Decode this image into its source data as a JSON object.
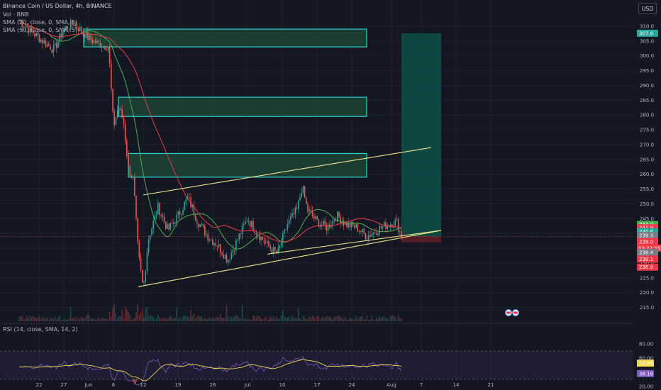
{
  "header": {
    "title": "Binance Coin / US Dollar, 4h, BINANCE",
    "vol": "Vol · BNB",
    "sma1": "SMA (20, close, 0, SMA, 5)",
    "sma2": "SMA (50, close, 0, SMA, 5)",
    "currency": "USD"
  },
  "rsi": {
    "label": "RSI (14, close, SMA, 14, 2)",
    "ticks": [
      "80.00",
      "60.00",
      "40.00",
      "20.00"
    ],
    "tag_rsi": "38.16",
    "tag_ma": "52.86"
  },
  "price_tags": {
    "target": "307.6",
    "t243": "243.0",
    "t241_9": "241.9",
    "t240_6": "240.6",
    "t239_3": "239.3",
    "current": "239.0",
    "countdown": "03:22:55",
    "t238_4": "238.4",
    "t238_1": "238.1",
    "t236_9": "236.9"
  },
  "colors": {
    "background": "#131722",
    "up": "#26a69a",
    "down": "#ef5350",
    "sma20": "#4caf50",
    "sma50": "#f23645",
    "zone_border": "#2ad4d4",
    "zone_fill": "#1f4a35",
    "trendline": "#f0e68c",
    "target_fill": "#0e4a44",
    "rsi_line": "#7e57c2",
    "rsi_ma": "#f0d64f"
  },
  "chart_data": {
    "type": "candlestick",
    "title": "Binance Coin / US Dollar, 4h, BINANCE",
    "y_unit": "USD",
    "ylim": [
      213,
      312
    ],
    "y_ticks": [
      215.0,
      220.0,
      225.0,
      230.0,
      235.0,
      240.0,
      245.0,
      250.0,
      255.0,
      260.0,
      265.0,
      270.0,
      275.0,
      280.0,
      285.0,
      290.0,
      295.0,
      300.0,
      305.0,
      310.0
    ],
    "x_labels": [
      "22",
      "27",
      "Jun",
      "6",
      "12",
      "19",
      "26",
      "Jul",
      "10",
      "17",
      "24",
      "Aug",
      "7",
      "14",
      "21"
    ],
    "price_path": [
      [
        "May 18",
        312
      ],
      [
        "May 22",
        306
      ],
      [
        "May 25",
        302
      ],
      [
        "May 27",
        309
      ],
      [
        "May 29",
        311
      ],
      [
        "Jun 1",
        306
      ],
      [
        "Jun 3",
        304
      ],
      [
        "Jun 5",
        303
      ],
      [
        "Jun 6",
        276
      ],
      [
        "Jun 7",
        283
      ],
      [
        "Jun 8",
        278
      ],
      [
        "Jun 9",
        262
      ],
      [
        "Jun 10",
        258
      ],
      [
        "Jun 11",
        233
      ],
      [
        "Jun 12",
        221
      ],
      [
        "Jun 13",
        238
      ],
      [
        "Jun 15",
        249
      ],
      [
        "Jun 17",
        241
      ],
      [
        "Jun 19",
        246
      ],
      [
        "Jun 21",
        252
      ],
      [
        "Jun 23",
        244
      ],
      [
        "Jun 25",
        239
      ],
      [
        "Jun 27",
        236
      ],
      [
        "Jun 29",
        231
      ],
      [
        "Jul 1",
        238
      ],
      [
        "Jul 3",
        245
      ],
      [
        "Jul 5",
        240
      ],
      [
        "Jul 7",
        236
      ],
      [
        "Jul 9",
        233
      ],
      [
        "Jul 11",
        243
      ],
      [
        "Jul 13",
        248
      ],
      [
        "Jul 14",
        256
      ],
      [
        "Jul 15",
        248
      ],
      [
        "Jul 17",
        244
      ],
      [
        "Jul 19",
        242
      ],
      [
        "Jul 21",
        246
      ],
      [
        "Jul 23",
        243
      ],
      [
        "Jul 25",
        242
      ],
      [
        "Jul 27",
        239
      ],
      [
        "Jul 29",
        241
      ],
      [
        "Jul 31",
        243
      ],
      [
        "Aug 2",
        244
      ],
      [
        "Aug 3",
        239
      ]
    ],
    "zones": [
      {
        "from": "May 31",
        "to": "Jul 27",
        "top": 309.0,
        "bottom": 303.0
      },
      {
        "from": "Jun 7",
        "to": "Jul 27",
        "top": 286.0,
        "bottom": 279.5
      },
      {
        "from": "Jun 9",
        "to": "Jul 27",
        "top": 267.0,
        "bottom": 259.0
      }
    ],
    "trendlines": [
      {
        "from": [
          "Jun 12",
          253
        ],
        "to": [
          "Aug 9",
          269
        ]
      },
      {
        "from": [
          "Jun 11",
          222
        ],
        "to": [
          "Aug 11",
          241
        ]
      },
      {
        "from": [
          "Jul 7",
          233
        ],
        "to": [
          "Aug 11",
          241
        ]
      }
    ],
    "target_box": {
      "from": "Aug 3",
      "to": "Aug 11",
      "top": 307.6,
      "entry": 239.0,
      "stop": 236.9
    },
    "current_price": 239.0,
    "rsi_ylim": [
      18,
      82
    ],
    "rsi_bands": [
      70,
      30
    ]
  }
}
